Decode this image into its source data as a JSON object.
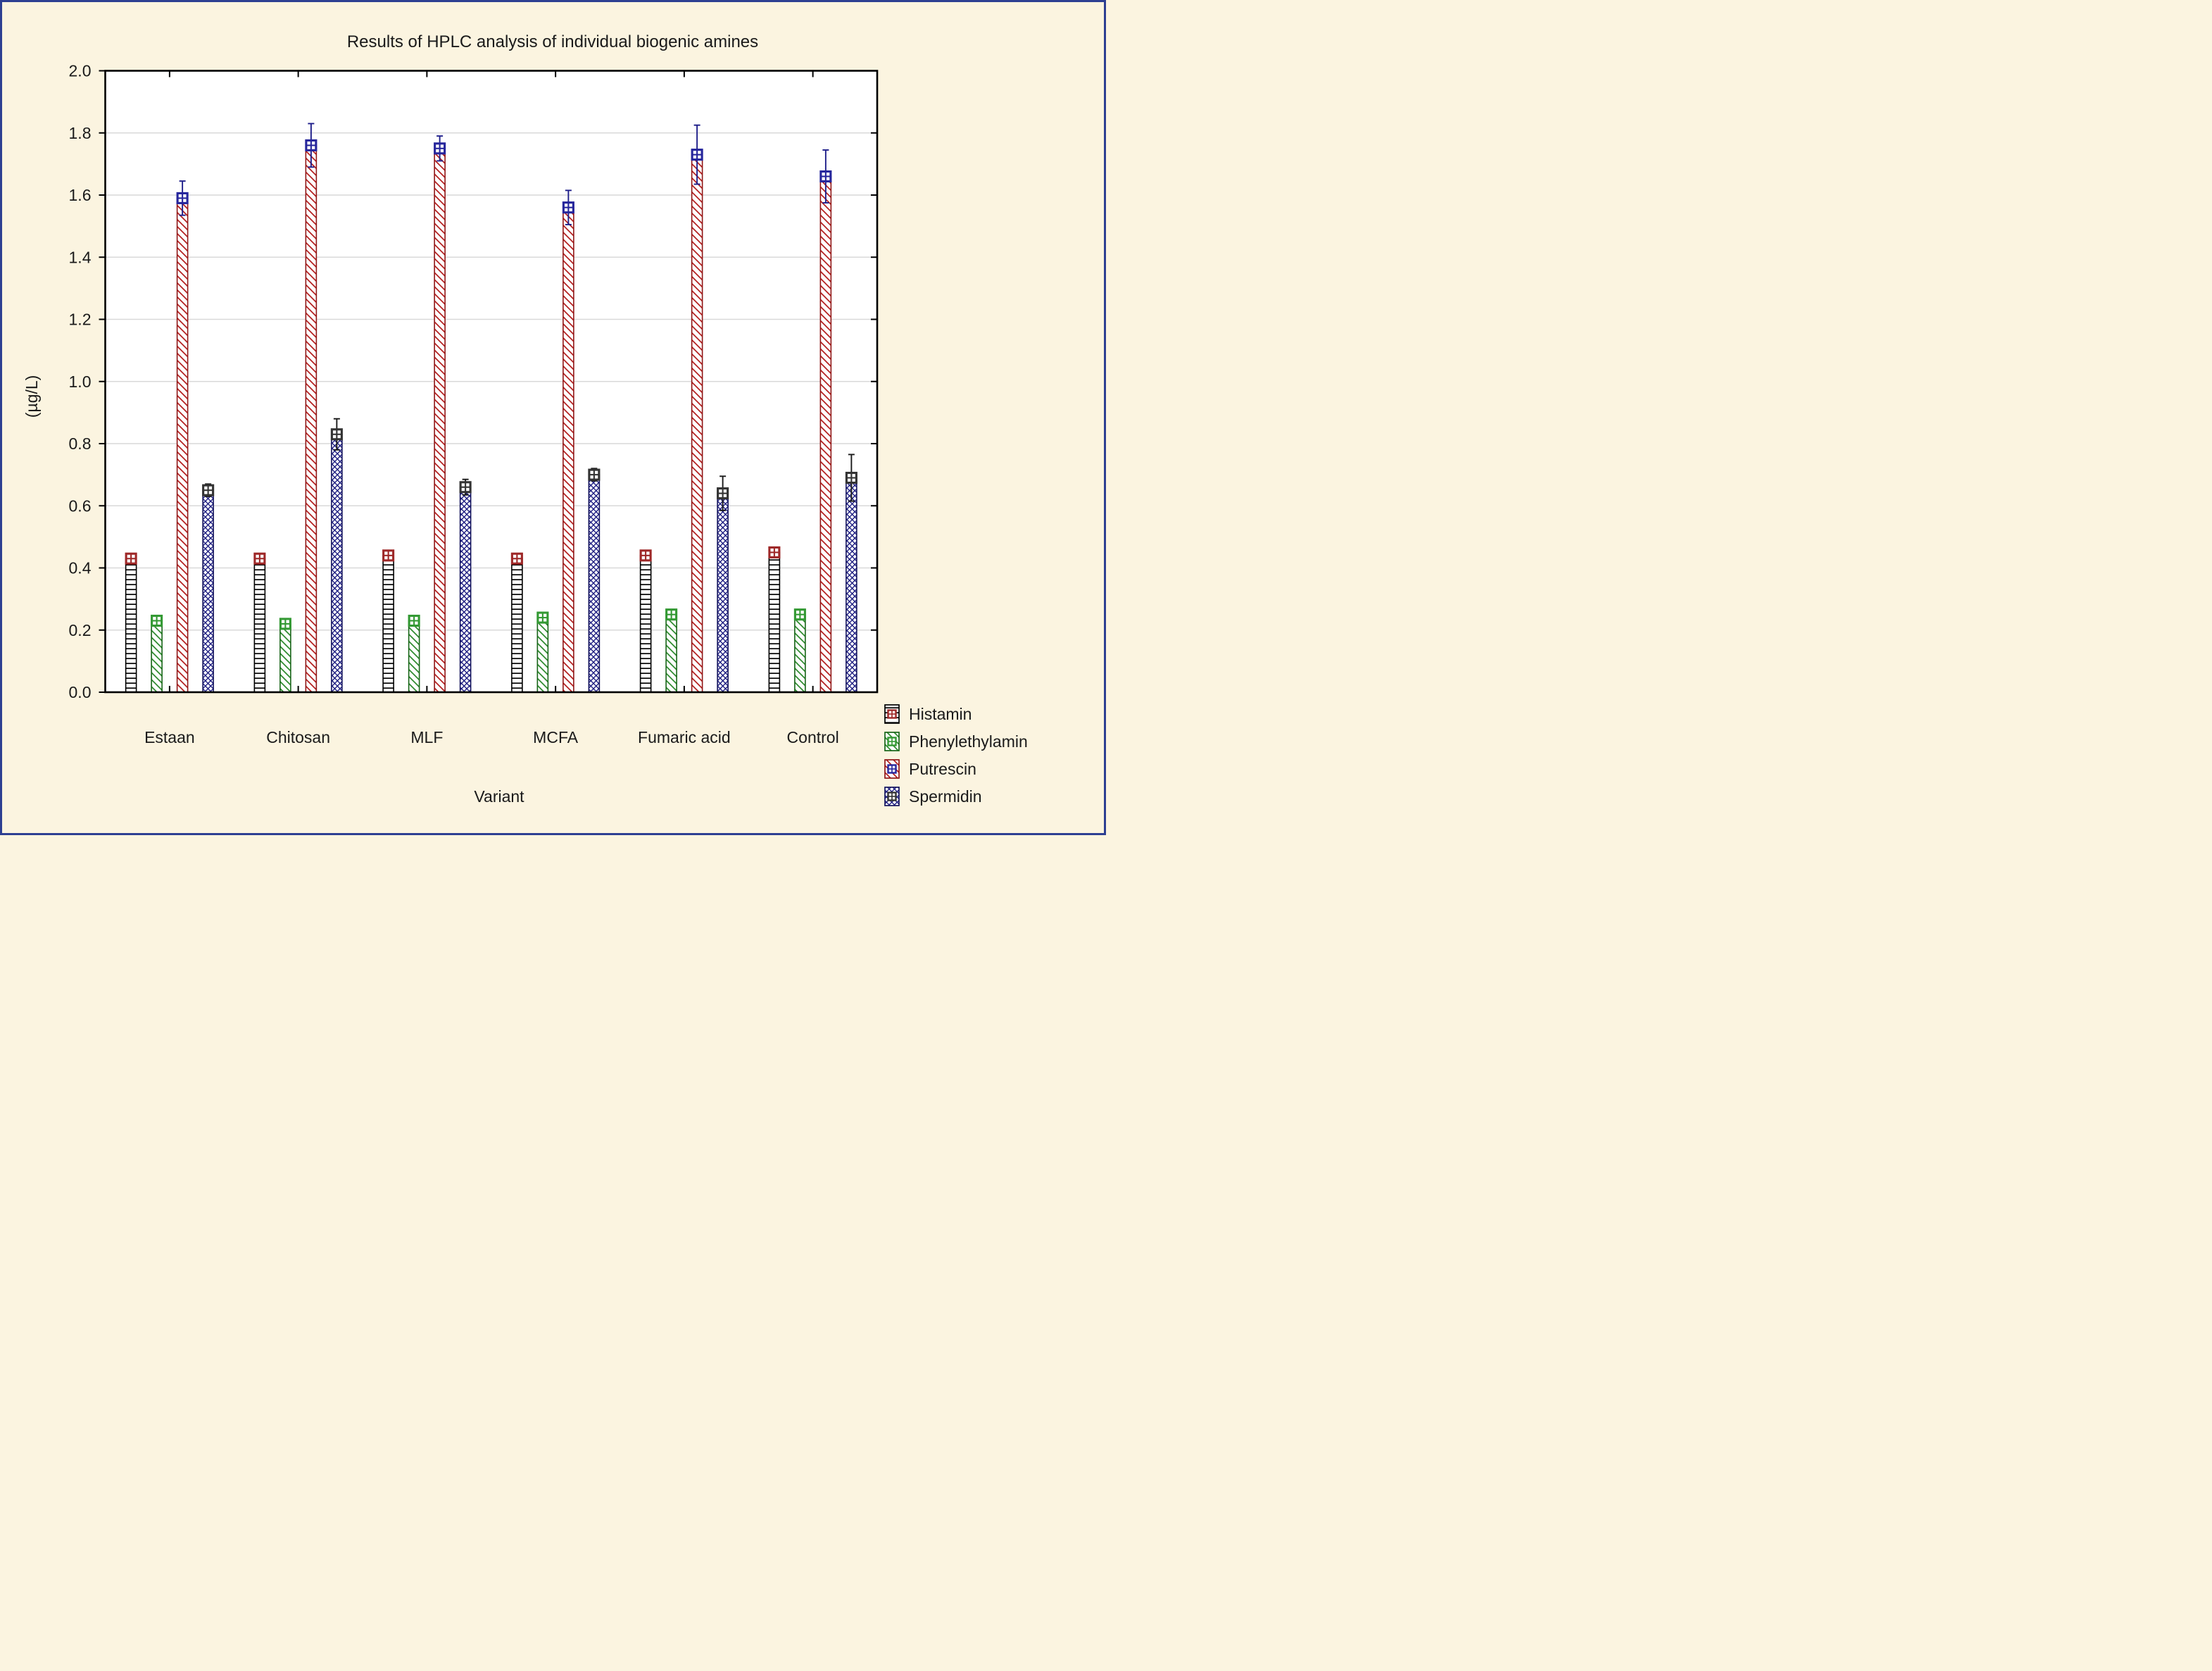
{
  "title": "Results of HPLC analysis of individual biogenic amines",
  "y_axis": {
    "label": "(µg/L)",
    "min": 0.0,
    "max": 2.0,
    "step": 0.2,
    "tick_labels": [
      "0.0",
      "0.2",
      "0.4",
      "0.6",
      "0.8",
      "1.0",
      "1.2",
      "1.4",
      "1.6",
      "1.8",
      "2.0"
    ]
  },
  "x_axis": {
    "label": "Variant",
    "categories": [
      "Estaan",
      "Chitosan",
      "MLF",
      "MCFA",
      "Fumaric acid",
      "Control"
    ]
  },
  "legend": {
    "position": "bottom-right",
    "items": [
      "Histamin",
      "Phenylethylamin",
      "Putrescin",
      "Spermidin"
    ]
  },
  "colors": {
    "background": "#FBF4E0",
    "plot_bg": "#FFFFFF",
    "grid": "#D9D9D9",
    "axis": "#000000",
    "frame_border": "#2D3F92"
  },
  "chart_data": {
    "type": "bar",
    "title": "Results of HPLC analysis of individual biogenic amines",
    "xlabel": "Variant",
    "ylabel": "(µg/L)",
    "ylim": [
      0.0,
      2.0
    ],
    "ytick_step": 0.2,
    "grid": true,
    "legend_position": "bottom-right",
    "categories": [
      "Estaan",
      "Chitosan",
      "MLF",
      "MCFA",
      "Fumaric acid",
      "Control"
    ],
    "series": [
      {
        "name": "Histamin",
        "pattern": "horizontal-lines",
        "pattern_color": "#000000",
        "border_color": "#000000",
        "marker_color": "#9E2828",
        "error_color": "#5F1212",
        "values": [
          0.43,
          0.43,
          0.44,
          0.43,
          0.44,
          0.45
        ],
        "errors": [
          0.015,
          0.015,
          0.015,
          0.015,
          0.015,
          0.015
        ]
      },
      {
        "name": "Phenylethylamin",
        "pattern": "diagonal-lines",
        "pattern_color": "#2E8B2E",
        "border_color": "#176417",
        "marker_color": "#339933",
        "error_color": "#1B5E1B",
        "values": [
          0.23,
          0.22,
          0.23,
          0.24,
          0.25,
          0.25
        ],
        "errors": [
          0.01,
          0.01,
          0.01,
          0.015,
          0.015,
          0.015
        ]
      },
      {
        "name": "Putrescin",
        "pattern": "diagonal-lines",
        "pattern_color": "#B42020",
        "border_color": "#8F1616",
        "marker_color": "#26269C",
        "error_color": "#1E1E8A",
        "values": [
          1.59,
          1.76,
          1.75,
          1.56,
          1.73,
          1.66
        ],
        "errors": [
          0.055,
          0.07,
          0.04,
          0.055,
          0.095,
          0.085
        ]
      },
      {
        "name": "Spermidin",
        "pattern": "crosshatch",
        "pattern_color": "#1E1E82",
        "border_color": "#15155E",
        "marker_color": "#333333",
        "error_color": "#1A1A1A",
        "values": [
          0.65,
          0.83,
          0.66,
          0.7,
          0.64,
          0.69
        ],
        "errors": [
          0.02,
          0.05,
          0.025,
          0.02,
          0.055,
          0.075
        ]
      }
    ]
  }
}
